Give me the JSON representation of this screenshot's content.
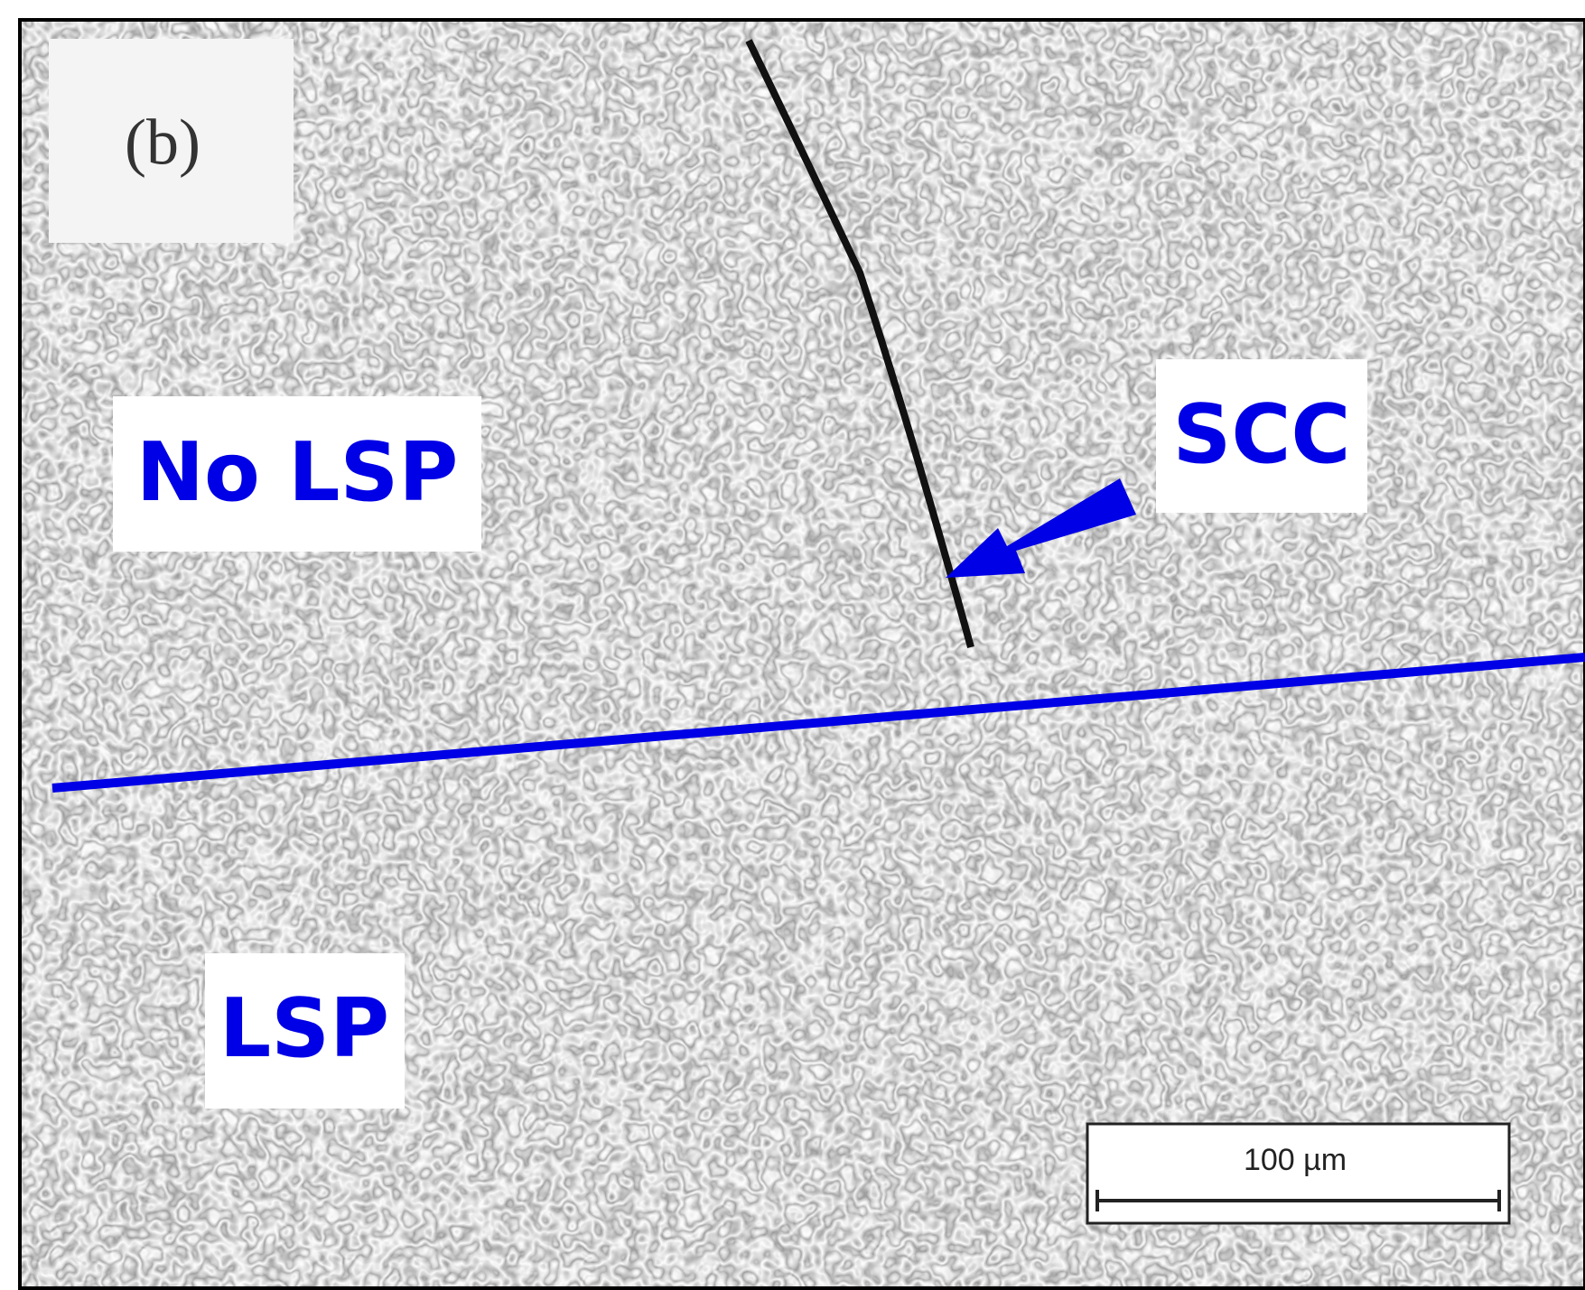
{
  "panel_label": "(b)",
  "labels": {
    "no_lsp": "No LSP",
    "scc": "SCC",
    "lsp": "LSP"
  },
  "scale_bar": "100 µm"
}
